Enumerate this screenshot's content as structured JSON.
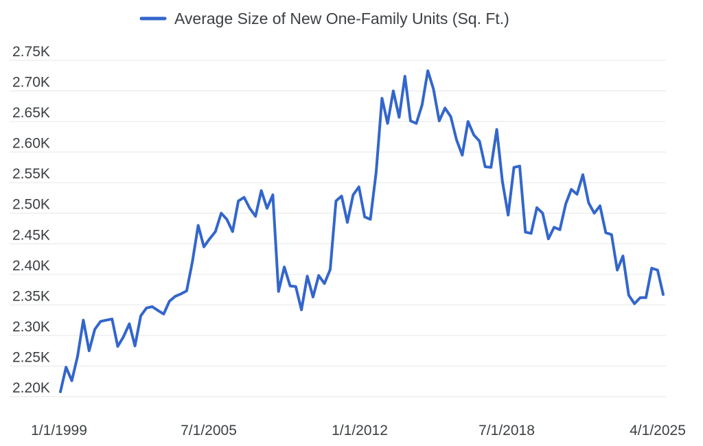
{
  "chart_data": {
    "type": "line",
    "title": "",
    "xlabel": "",
    "ylabel": "",
    "legend": {
      "position": "top",
      "entries": [
        "Average Size of New One-Family Units (Sq. Ft.)"
      ]
    },
    "grid": true,
    "x_tick_labels": [
      "1/1/1999",
      "7/1/2005",
      "1/1/2012",
      "7/1/2018",
      "4/1/2025"
    ],
    "y_tick_labels": [
      "2.20K",
      "2.25K",
      "2.30K",
      "2.35K",
      "2.40K",
      "2.45K",
      "2.50K",
      "2.55K",
      "2.60K",
      "2.65K",
      "2.70K",
      "2.75K"
    ],
    "ylim": [
      2200,
      2750
    ],
    "xlim": [
      "1999-01-01",
      "2025-04-01"
    ],
    "series": [
      {
        "name": "Average Size of New One-Family Units (Sq. Ft.)",
        "color": "#3366cc",
        "points": [
          [
            "1999-01-01",
            2208
          ],
          [
            "1999-04-01",
            2248
          ],
          [
            "1999-07-01",
            2226
          ],
          [
            "1999-10-01",
            2266
          ],
          [
            "2000-01-01",
            2325
          ],
          [
            "2000-04-01",
            2275
          ],
          [
            "2000-07-01",
            2310
          ],
          [
            "2000-10-01",
            2323
          ],
          [
            "2001-01-01",
            2325
          ],
          [
            "2001-04-01",
            2327
          ],
          [
            "2001-07-01",
            2282
          ],
          [
            "2001-10-01",
            2298
          ],
          [
            "2002-01-01",
            2319
          ],
          [
            "2002-04-01",
            2283
          ],
          [
            "2002-07-01",
            2332
          ],
          [
            "2002-10-01",
            2345
          ],
          [
            "2003-01-01",
            2347
          ],
          [
            "2003-04-01",
            2341
          ],
          [
            "2003-07-01",
            2335
          ],
          [
            "2003-10-01",
            2356
          ],
          [
            "2004-01-01",
            2364
          ],
          [
            "2004-04-01",
            2368
          ],
          [
            "2004-07-01",
            2373
          ],
          [
            "2004-10-01",
            2421
          ],
          [
            "2005-01-01",
            2480
          ],
          [
            "2005-04-01",
            2445
          ],
          [
            "2005-07-01",
            2458
          ],
          [
            "2005-10-01",
            2470
          ],
          [
            "2006-01-01",
            2500
          ],
          [
            "2006-04-01",
            2490
          ],
          [
            "2006-07-01",
            2470
          ],
          [
            "2006-10-01",
            2520
          ],
          [
            "2007-01-01",
            2526
          ],
          [
            "2007-04-01",
            2508
          ],
          [
            "2007-07-01",
            2495
          ],
          [
            "2007-10-01",
            2537
          ],
          [
            "2008-01-01",
            2508
          ],
          [
            "2008-04-01",
            2530
          ],
          [
            "2008-07-01",
            2372
          ],
          [
            "2008-10-01",
            2412
          ],
          [
            "2009-01-01",
            2381
          ],
          [
            "2009-04-01",
            2380
          ],
          [
            "2009-07-01",
            2342
          ],
          [
            "2009-10-01",
            2397
          ],
          [
            "2010-01-01",
            2363
          ],
          [
            "2010-04-01",
            2398
          ],
          [
            "2010-07-01",
            2385
          ],
          [
            "2010-10-01",
            2408
          ],
          [
            "2011-01-01",
            2520
          ],
          [
            "2011-04-01",
            2528
          ],
          [
            "2011-07-01",
            2485
          ],
          [
            "2011-10-01",
            2530
          ],
          [
            "2012-01-01",
            2543
          ],
          [
            "2012-04-01",
            2494
          ],
          [
            "2012-07-01",
            2490
          ],
          [
            "2012-10-01",
            2567
          ],
          [
            "2013-01-01",
            2688
          ],
          [
            "2013-04-01",
            2647
          ],
          [
            "2013-07-01",
            2700
          ],
          [
            "2013-10-01",
            2657
          ],
          [
            "2014-01-01",
            2724
          ],
          [
            "2014-04-01",
            2651
          ],
          [
            "2014-07-01",
            2647
          ],
          [
            "2014-10-01",
            2677
          ],
          [
            "2015-01-01",
            2733
          ],
          [
            "2015-04-01",
            2703
          ],
          [
            "2015-07-01",
            2651
          ],
          [
            "2015-10-01",
            2672
          ],
          [
            "2016-01-01",
            2658
          ],
          [
            "2016-04-01",
            2620
          ],
          [
            "2016-07-01",
            2595
          ],
          [
            "2016-10-01",
            2650
          ],
          [
            "2017-01-01",
            2628
          ],
          [
            "2017-04-01",
            2618
          ],
          [
            "2017-07-01",
            2576
          ],
          [
            "2017-10-01",
            2575
          ],
          [
            "2018-01-01",
            2637
          ],
          [
            "2018-04-01",
            2552
          ],
          [
            "2018-07-01",
            2497
          ],
          [
            "2018-10-01",
            2575
          ],
          [
            "2019-01-01",
            2577
          ],
          [
            "2019-04-01",
            2469
          ],
          [
            "2019-07-01",
            2467
          ],
          [
            "2019-10-01",
            2509
          ],
          [
            "2020-01-01",
            2500
          ],
          [
            "2020-04-01",
            2458
          ],
          [
            "2020-07-01",
            2477
          ],
          [
            "2020-10-01",
            2473
          ],
          [
            "2021-01-01",
            2515
          ],
          [
            "2021-04-01",
            2539
          ],
          [
            "2021-07-01",
            2531
          ],
          [
            "2021-10-01",
            2563
          ],
          [
            "2022-01-01",
            2517
          ],
          [
            "2022-04-01",
            2500
          ],
          [
            "2022-07-01",
            2512
          ],
          [
            "2022-10-01",
            2468
          ],
          [
            "2023-01-01",
            2465
          ],
          [
            "2023-04-01",
            2407
          ],
          [
            "2023-07-01",
            2430
          ],
          [
            "2023-10-01",
            2366
          ],
          [
            "2024-01-01",
            2352
          ],
          [
            "2024-04-01",
            2362
          ],
          [
            "2024-07-01",
            2362
          ],
          [
            "2024-10-01",
            2410
          ],
          [
            "2025-01-01",
            2407
          ],
          [
            "2025-04-01",
            2367
          ]
        ]
      }
    ]
  }
}
